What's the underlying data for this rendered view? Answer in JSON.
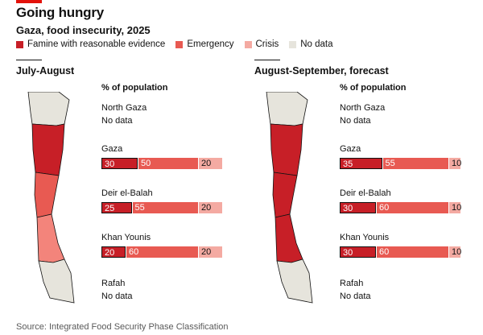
{
  "title": "Going hungry",
  "subtitle": "Gaza, food insecurity, 2025",
  "legend": [
    {
      "label": "Famine with reasonable evidence",
      "color": "#c71f27"
    },
    {
      "label": "Emergency",
      "color": "#e85a52"
    },
    {
      "label": "Crisis",
      "color": "#f4aaa2"
    },
    {
      "label": "No data",
      "color": "#e6e4dc"
    }
  ],
  "source": "Source: Integrated Food Security Phase Classification",
  "chart_data": [
    {
      "type": "bar",
      "stacked": true,
      "title": "July-August",
      "ylabel": "% of population",
      "categories": [
        "North Gaza",
        "Gaza",
        "Deir el-Balah",
        "Khan Younis",
        "Rafah"
      ],
      "no_data_label": "No data",
      "series": [
        {
          "name": "Famine with reasonable evidence",
          "values": [
            null,
            30,
            25,
            20,
            null
          ]
        },
        {
          "name": "Emergency",
          "values": [
            null,
            50,
            55,
            60,
            null
          ]
        },
        {
          "name": "Crisis",
          "values": [
            null,
            20,
            20,
            20,
            null
          ]
        }
      ],
      "ylim": [
        0,
        100
      ]
    },
    {
      "type": "bar",
      "stacked": true,
      "title": "August-September, forecast",
      "ylabel": "% of population",
      "categories": [
        "North Gaza",
        "Gaza",
        "Deir el-Balah",
        "Khan Younis",
        "Rafah"
      ],
      "no_data_label": "No data",
      "series": [
        {
          "name": "Famine with reasonable evidence",
          "values": [
            null,
            35,
            30,
            30,
            null
          ]
        },
        {
          "name": "Emergency",
          "values": [
            null,
            55,
            60,
            60,
            null
          ]
        },
        {
          "name": "Crisis",
          "values": [
            null,
            10,
            10,
            10,
            null
          ]
        }
      ],
      "ylim": [
        0,
        100
      ]
    }
  ]
}
